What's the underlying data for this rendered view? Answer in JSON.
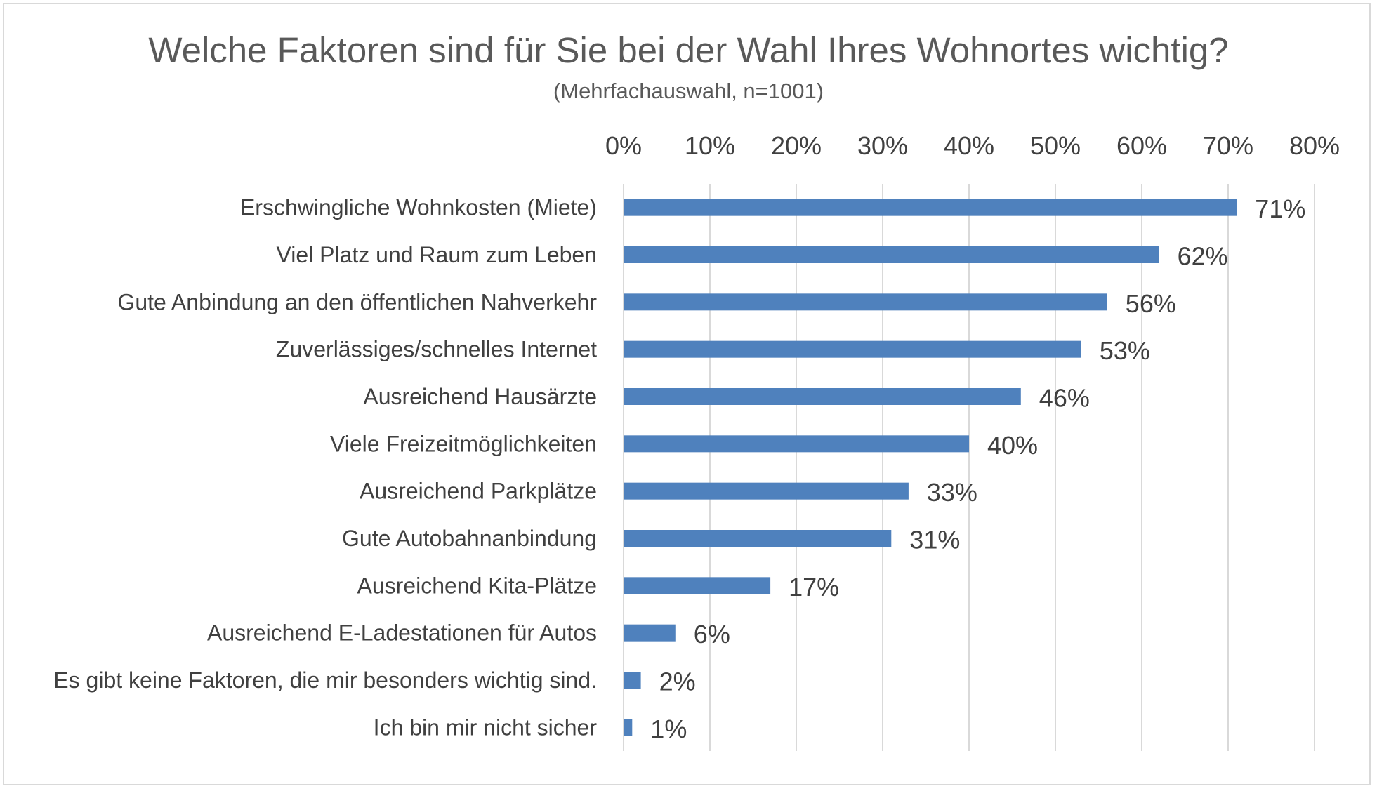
{
  "chart_data": {
    "type": "bar",
    "orientation": "horizontal",
    "title": "Welche Faktoren sind für Sie bei der Wahl Ihres Wohnortes wichtig?",
    "subtitle": "(Mehrfachauswahl, n=1001)",
    "categories": [
      "Erschwingliche Wohnkosten (Miete)",
      "Viel Platz und Raum zum Leben",
      "Gute Anbindung an den öffentlichen Nahverkehr",
      "Zuverlässiges/schnelles Internet",
      "Ausreichend Hausärzte",
      "Viele Freizeitmöglichkeiten",
      "Ausreichend Parkplätze",
      "Gute Autobahnanbindung",
      "Ausreichend Kita-Plätze",
      "Ausreichend E-Ladestationen für Autos",
      "Es gibt keine Faktoren, die mir besonders wichtig sind.",
      "Ich bin mir nicht sicher"
    ],
    "values": [
      71,
      62,
      56,
      53,
      46,
      40,
      33,
      31,
      17,
      6,
      2,
      1
    ],
    "value_labels": [
      "71%",
      "62%",
      "56%",
      "53%",
      "46%",
      "40%",
      "33%",
      "31%",
      "17%",
      "6%",
      "2%",
      "1%"
    ],
    "xlim": [
      0,
      80
    ],
    "x_ticks": [
      "0%",
      "10%",
      "20%",
      "30%",
      "40%",
      "50%",
      "60%",
      "70%",
      "80%"
    ],
    "x_axis_position": "top",
    "grid": true,
    "bar_color": "#4f81bd",
    "grid_color": "#d9d9d9"
  }
}
